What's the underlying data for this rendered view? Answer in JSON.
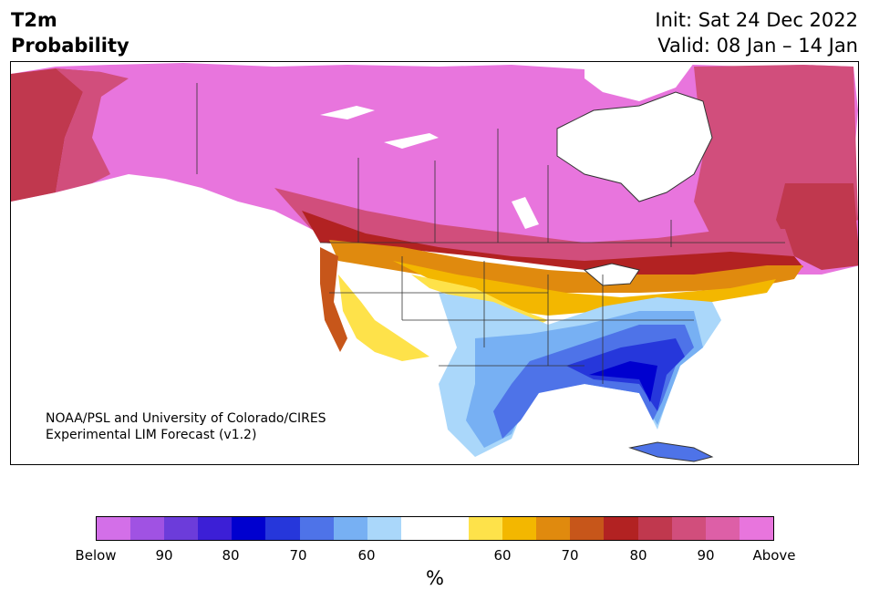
{
  "header": {
    "variable": "T2m",
    "product": "Probability",
    "init": "Init: Sat 24 Dec 2022",
    "valid": "Valid: 08 Jan – 14 Jan"
  },
  "credit": {
    "line1": "NOAA/PSL and University of Colorado/CIRES",
    "line2": "Experimental LIM Forecast (v1.2)"
  },
  "colorbar": {
    "colors": [
      "#d36fe8",
      "#a052e3",
      "#6c3cda",
      "#3c1fd6",
      "#0000cf",
      "#2637db",
      "#4e73e8",
      "#77b0f3",
      "#aad7fa",
      "#ffffff",
      "#ffffff",
      "#fee24a",
      "#f3b700",
      "#e08a0e",
      "#c7561a",
      "#b22222",
      "#c0384e",
      "#d14e7c",
      "#dd5fa7",
      "#e875dd"
    ],
    "labels": [
      "Below",
      "90",
      "80",
      "70",
      "60",
      "60",
      "70",
      "80",
      "90",
      "Above"
    ],
    "unit": "%"
  },
  "map": {
    "region": "North America",
    "water_color": "#ffffff",
    "border_color": "#333333"
  }
}
